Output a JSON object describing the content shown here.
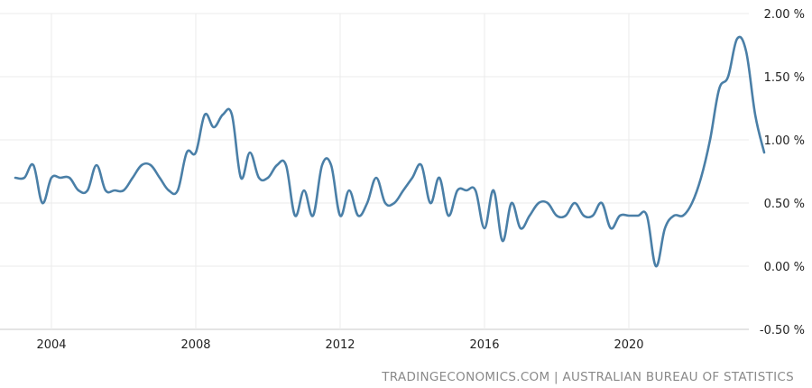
{
  "source_text": "TRADINGECONOMICS.COM | AUSTRALIAN BUREAU OF STATISTICS",
  "chart_data": {
    "type": "line",
    "title": "",
    "xlabel": "",
    "ylabel": "",
    "ylim": [
      -0.5,
      2.0
    ],
    "xlim": [
      2002.9,
      2024.0
    ],
    "y_ticks": [
      2.0,
      1.5,
      1.0,
      0.5,
      0.0,
      -0.5
    ],
    "y_tick_labels": [
      "2.00 %",
      "1.50 %",
      "1.00 %",
      "0.50 %",
      "0.00 %",
      "-0.50 %"
    ],
    "x_ticks": [
      2004,
      2008,
      2012,
      2016,
      2020
    ],
    "x_tick_labels": [
      "2004",
      "2008",
      "2012",
      "2016",
      "2020"
    ],
    "grid": true,
    "line_color": "#4a7fa7",
    "series": [
      {
        "values": [
          [
            2003.0,
            0.7
          ],
          [
            2003.25,
            0.7
          ],
          [
            2003.5,
            0.8
          ],
          [
            2003.75,
            0.5
          ],
          [
            2004.0,
            0.7
          ],
          [
            2004.25,
            0.7
          ],
          [
            2004.5,
            0.7
          ],
          [
            2004.75,
            0.6
          ],
          [
            2005.0,
            0.6
          ],
          [
            2005.25,
            0.8
          ],
          [
            2005.5,
            0.6
          ],
          [
            2005.75,
            0.6
          ],
          [
            2006.0,
            0.6
          ],
          [
            2006.25,
            0.7
          ],
          [
            2006.5,
            0.8
          ],
          [
            2006.75,
            0.8
          ],
          [
            2007.0,
            0.7
          ],
          [
            2007.25,
            0.6
          ],
          [
            2007.5,
            0.6
          ],
          [
            2007.75,
            0.9
          ],
          [
            2008.0,
            0.9
          ],
          [
            2008.25,
            1.2
          ],
          [
            2008.5,
            1.1
          ],
          [
            2008.75,
            1.2
          ],
          [
            2009.0,
            1.2
          ],
          [
            2009.25,
            0.7
          ],
          [
            2009.5,
            0.9
          ],
          [
            2009.75,
            0.7
          ],
          [
            2010.0,
            0.7
          ],
          [
            2010.25,
            0.8
          ],
          [
            2010.5,
            0.8
          ],
          [
            2010.75,
            0.4
          ],
          [
            2011.0,
            0.6
          ],
          [
            2011.25,
            0.4
          ],
          [
            2011.5,
            0.8
          ],
          [
            2011.75,
            0.8
          ],
          [
            2012.0,
            0.4
          ],
          [
            2012.25,
            0.6
          ],
          [
            2012.5,
            0.4
          ],
          [
            2012.75,
            0.5
          ],
          [
            2013.0,
            0.7
          ],
          [
            2013.25,
            0.5
          ],
          [
            2013.5,
            0.5
          ],
          [
            2013.75,
            0.6
          ],
          [
            2014.0,
            0.7
          ],
          [
            2014.25,
            0.8
          ],
          [
            2014.5,
            0.5
          ],
          [
            2014.75,
            0.7
          ],
          [
            2015.0,
            0.4
          ],
          [
            2015.25,
            0.6
          ],
          [
            2015.5,
            0.6
          ],
          [
            2015.75,
            0.6
          ],
          [
            2016.0,
            0.3
          ],
          [
            2016.25,
            0.6
          ],
          [
            2016.5,
            0.2
          ],
          [
            2016.75,
            0.5
          ],
          [
            2017.0,
            0.3
          ],
          [
            2017.25,
            0.4
          ],
          [
            2017.5,
            0.5
          ],
          [
            2017.75,
            0.5
          ],
          [
            2018.0,
            0.4
          ],
          [
            2018.25,
            0.4
          ],
          [
            2018.5,
            0.5
          ],
          [
            2018.75,
            0.4
          ],
          [
            2019.0,
            0.4
          ],
          [
            2019.25,
            0.5
          ],
          [
            2019.5,
            0.3
          ],
          [
            2019.75,
            0.4
          ],
          [
            2020.0,
            0.4
          ],
          [
            2020.25,
            0.4
          ],
          [
            2020.5,
            0.4
          ],
          [
            2020.75,
            0.0
          ],
          [
            2021.0,
            0.3
          ],
          [
            2021.25,
            0.4
          ],
          [
            2021.5,
            0.4
          ],
          [
            2021.75,
            0.5
          ],
          [
            2022.0,
            0.7
          ],
          [
            2022.25,
            1.0
          ],
          [
            2022.5,
            1.4
          ],
          [
            2022.75,
            1.5
          ],
          [
            2023.0,
            1.8
          ],
          [
            2023.25,
            1.7
          ],
          [
            2023.5,
            1.2
          ],
          [
            2023.75,
            0.9
          ]
        ]
      }
    ]
  }
}
